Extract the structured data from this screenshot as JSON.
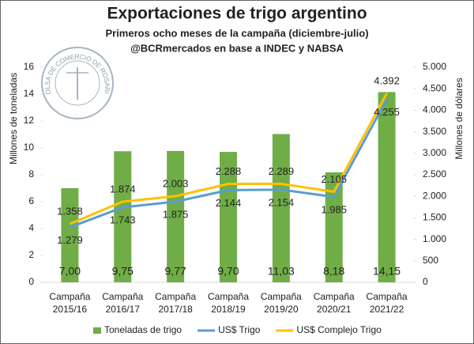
{
  "chart_data": {
    "type": "bar",
    "title": "Exportaciones de trigo argentino",
    "subtitle": [
      "Primeros ocho meses de la campaña (diciembre-julio)",
      "@BCRmercados en base a INDEC y NABSA"
    ],
    "logo_text": "BOLSA DE COMERCIO DE ROSARIO",
    "ylabel": "Millones de toneladas",
    "y2label": "Millones de dólares",
    "categories": [
      "Campaña 2015/16",
      "Campaña 2016/17",
      "Campaña 2017/18",
      "Campaña 2018/19",
      "Campaña 2019/20",
      "Campaña 2020/21",
      "Campaña 2021/22"
    ],
    "series": [
      {
        "name": "Toneladas de trigo",
        "type": "bar",
        "color": "#70ad47",
        "values": [
          7.0,
          9.75,
          9.77,
          9.7,
          11.03,
          8.18,
          14.15
        ],
        "value_labels": [
          "7,00",
          "9,75",
          "9,77",
          "9,70",
          "11,03",
          "8,18",
          "14,15"
        ]
      },
      {
        "name": "US$ Trigo",
        "type": "line",
        "axis": "y2",
        "color": "#5b9bd5",
        "values": [
          1279,
          1743,
          1875,
          2144,
          2154,
          1985,
          4255
        ],
        "value_labels": [
          "1.279",
          "1.743",
          "1.875",
          "2.144",
          "2.154",
          "1.985",
          "4.255"
        ]
      },
      {
        "name": "US$ Complejo Trigo",
        "type": "line",
        "axis": "y2",
        "color": "#ffc000",
        "values": [
          1358,
          1874,
          2003,
          2288,
          2289,
          2105,
          4392
        ],
        "value_labels": [
          "1.358",
          "1.874",
          "2.003",
          "2.288",
          "2.289",
          "2.105",
          "4.392"
        ]
      }
    ],
    "ylim": [
      0,
      16
    ],
    "yticks": [
      0,
      2,
      4,
      6,
      8,
      10,
      12,
      14,
      16
    ],
    "y2lim": [
      0,
      5000
    ],
    "y2ticks": [
      0,
      500,
      {
        "value": 1000,
        "label": "1.000"
      },
      {
        "value": 1500,
        "label": "1.500"
      },
      {
        "value": 2000,
        "label": "2.000"
      },
      {
        "value": 2500,
        "label": "2.500"
      },
      {
        "value": 3000,
        "label": "3.000"
      },
      {
        "value": 3500,
        "label": "3.500"
      },
      {
        "value": 4000,
        "label": "4.000"
      },
      {
        "value": 4500,
        "label": "4.500"
      },
      {
        "value": 5000,
        "label": "5.000"
      }
    ],
    "grid": false,
    "legend": "bottom"
  }
}
